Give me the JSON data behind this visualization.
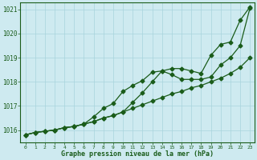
{
  "title": "Graphe pression niveau de la mer (hPa)",
  "x": [
    0,
    1,
    2,
    3,
    4,
    5,
    6,
    7,
    8,
    9,
    10,
    11,
    12,
    13,
    14,
    15,
    16,
    17,
    18,
    19,
    20,
    21,
    22,
    23
  ],
  "line_straight": [
    1015.8,
    1015.9,
    1015.95,
    1016.0,
    1016.1,
    1016.15,
    1016.25,
    1016.35,
    1016.5,
    1016.6,
    1016.75,
    1016.9,
    1017.05,
    1017.2,
    1017.35,
    1017.5,
    1017.6,
    1017.75,
    1017.85,
    1018.0,
    1018.15,
    1018.35,
    1018.6,
    1019.0
  ],
  "line_mid": [
    1015.8,
    1015.9,
    1015.95,
    1016.0,
    1016.1,
    1016.15,
    1016.25,
    1016.55,
    1016.9,
    1017.1,
    1017.6,
    1017.85,
    1018.05,
    1018.4,
    1018.45,
    1018.3,
    1018.1,
    1018.1,
    1018.1,
    1018.2,
    1018.7,
    1019.0,
    1019.5,
    1021.05
  ],
  "line_top": [
    1015.8,
    1015.9,
    1015.95,
    1016.0,
    1016.1,
    1016.15,
    1016.25,
    1016.35,
    1016.5,
    1016.6,
    1016.75,
    1017.15,
    1017.55,
    1018.0,
    1018.45,
    1018.55,
    1018.55,
    1018.45,
    1018.35,
    1019.1,
    1019.55,
    1019.65,
    1020.55,
    1021.1
  ],
  "ylim": [
    1015.5,
    1021.3
  ],
  "yticks": [
    1016,
    1017,
    1018,
    1019,
    1020,
    1021
  ],
  "xlim": [
    -0.5,
    23.5
  ],
  "bg_color": "#ceeaf0",
  "line_color": "#1a5c1a",
  "grid_color": "#a8d4dc",
  "label_color": "#1a5c1a",
  "title_color": "#1a5c1a",
  "marker": "D",
  "markersize": 2.5,
  "linewidth": 0.9
}
